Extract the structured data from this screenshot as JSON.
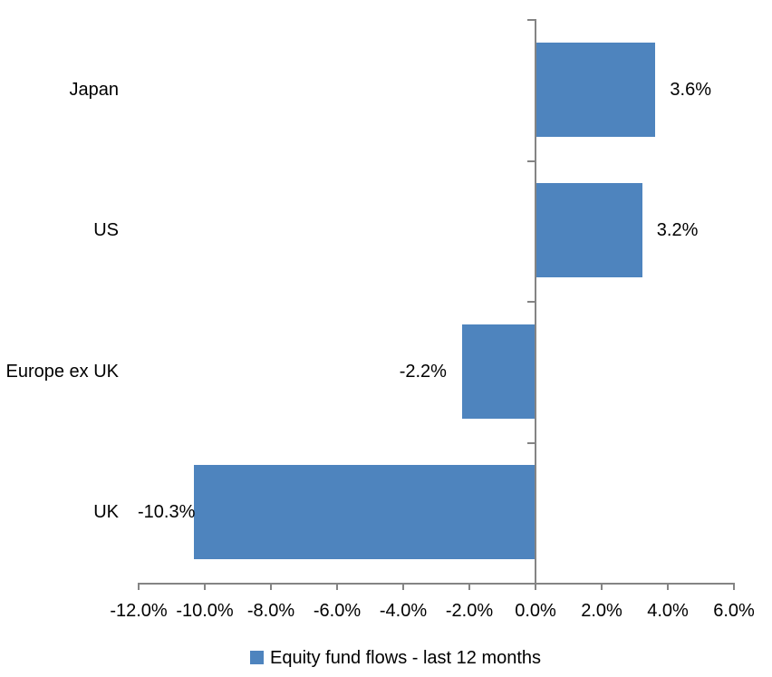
{
  "chart_data": {
    "type": "bar",
    "orientation": "horizontal",
    "categories": [
      "Japan",
      "US",
      "Europe ex UK",
      "UK"
    ],
    "series": [
      {
        "name": "Equity fund flows - last 12 months",
        "values": [
          3.6,
          3.2,
          -2.2,
          -10.3
        ]
      }
    ],
    "value_labels": [
      "3.6%",
      "3.2%",
      "-2.2%",
      "-10.3%"
    ],
    "x_tick_labels": [
      "-12.0%",
      "-10.0%",
      "-8.0%",
      "-6.0%",
      "-4.0%",
      "-2.0%",
      "0.0%",
      "2.0%",
      "4.0%",
      "6.0%"
    ],
    "xlim": [
      -12,
      6
    ],
    "xtick_step": 2,
    "grid": false,
    "legend_position": "bottom",
    "value_label_position": "outside-end"
  },
  "legend": {
    "label": "Equity fund flows - last 12 months"
  },
  "colors": {
    "bar": "#4E84BE",
    "axis": "#848484",
    "text": "#000000",
    "background": "#FFFFFF"
  }
}
